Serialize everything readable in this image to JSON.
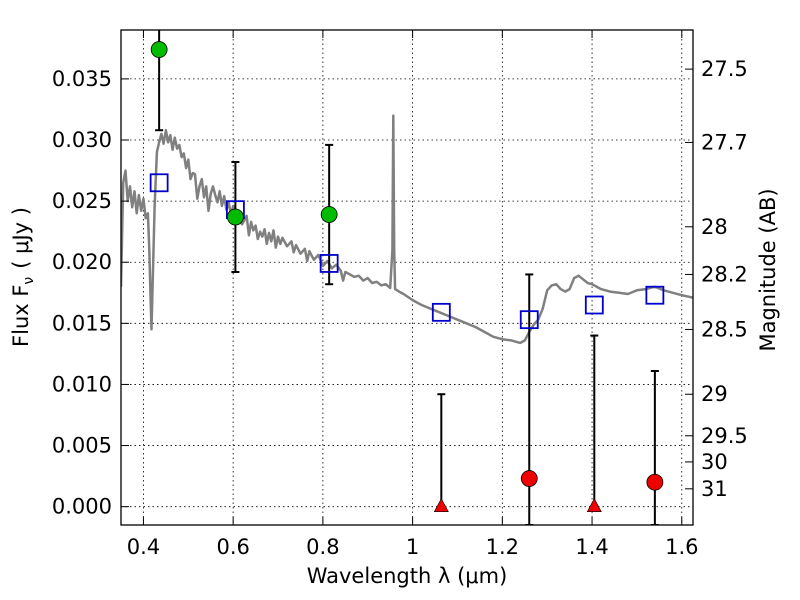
{
  "chart_data": {
    "type": "scatter",
    "xlabel": "Wavelength  λ (μm)",
    "ylabel": "Flux  F",
    "ylabel_sub": "ν",
    "ylabel_unit": "( μJy )",
    "y2label": "Magnitude (AB)",
    "xlim": [
      0.35,
      1.625
    ],
    "ylim": [
      -0.0015,
      0.039
    ],
    "grid": true,
    "x_ticks": [
      0.4,
      0.6,
      0.8,
      1.0,
      1.2,
      1.4,
      1.6
    ],
    "x_tick_labels": [
      "0.4",
      "0.6",
      "0.8",
      "1",
      "1.2",
      "1.4",
      "1.6"
    ],
    "y_ticks": [
      0.0,
      0.005,
      0.01,
      0.015,
      0.02,
      0.025,
      0.03,
      0.035
    ],
    "y_tick_labels": [
      "0.000",
      "0.005",
      "0.010",
      "0.015",
      "0.020",
      "0.025",
      "0.030",
      "0.035"
    ],
    "y2_ticks": [
      {
        "flux": 0.0358,
        "label": "27.5"
      },
      {
        "flux": 0.0298,
        "label": "27.7"
      },
      {
        "flux": 0.0229,
        "label": "28"
      },
      {
        "flux": 0.019,
        "label": "28.2"
      },
      {
        "flux": 0.0145,
        "label": "28.5"
      },
      {
        "flux": 0.0092,
        "label": "29"
      },
      {
        "flux": 0.0058,
        "label": "29.5"
      },
      {
        "flux": 0.00366,
        "label": "30"
      },
      {
        "flux": 0.00146,
        "label": "31"
      }
    ],
    "series": [
      {
        "kind": "model_sed",
        "color": "#808080",
        "points": [
          [
            0.35,
            0.018
          ],
          [
            0.355,
            0.0265
          ],
          [
            0.36,
            0.0275
          ],
          [
            0.365,
            0.025
          ],
          [
            0.37,
            0.0262
          ],
          [
            0.375,
            0.0245
          ],
          [
            0.38,
            0.0258
          ],
          [
            0.385,
            0.024
          ],
          [
            0.39,
            0.0255
          ],
          [
            0.395,
            0.0242
          ],
          [
            0.4,
            0.0252
          ],
          [
            0.405,
            0.0236
          ],
          [
            0.41,
            0.024
          ],
          [
            0.413,
            0.021
          ],
          [
            0.416,
            0.017
          ],
          [
            0.418,
            0.0145
          ],
          [
            0.421,
            0.019
          ],
          [
            0.425,
            0.0245
          ],
          [
            0.43,
            0.029
          ],
          [
            0.435,
            0.0298
          ],
          [
            0.44,
            0.0305
          ],
          [
            0.445,
            0.0297
          ],
          [
            0.45,
            0.0308
          ],
          [
            0.455,
            0.0298
          ],
          [
            0.46,
            0.0304
          ],
          [
            0.465,
            0.0292
          ],
          [
            0.47,
            0.0302
          ],
          [
            0.475,
            0.0293
          ],
          [
            0.48,
            0.0296
          ],
          [
            0.485,
            0.0286
          ],
          [
            0.49,
            0.0289
          ],
          [
            0.495,
            0.0277
          ],
          [
            0.5,
            0.0284
          ],
          [
            0.505,
            0.0268
          ],
          [
            0.51,
            0.0273
          ],
          [
            0.515,
            0.0272
          ],
          [
            0.52,
            0.0252
          ],
          [
            0.525,
            0.0262
          ],
          [
            0.53,
            0.0268
          ],
          [
            0.535,
            0.0253
          ],
          [
            0.54,
            0.0262
          ],
          [
            0.545,
            0.0242
          ],
          [
            0.55,
            0.0256
          ],
          [
            0.555,
            0.0262
          ],
          [
            0.56,
            0.0255
          ],
          [
            0.565,
            0.0249
          ],
          [
            0.57,
            0.0258
          ],
          [
            0.575,
            0.0246
          ],
          [
            0.58,
            0.0254
          ],
          [
            0.585,
            0.0243
          ],
          [
            0.59,
            0.0249
          ],
          [
            0.595,
            0.0239
          ],
          [
            0.6,
            0.0246
          ],
          [
            0.61,
            0.0237
          ],
          [
            0.62,
            0.0231
          ],
          [
            0.63,
            0.0238
          ],
          [
            0.635,
            0.0222
          ],
          [
            0.64,
            0.0233
          ],
          [
            0.645,
            0.0226
          ],
          [
            0.65,
            0.023
          ],
          [
            0.655,
            0.0219
          ],
          [
            0.66,
            0.0225
          ],
          [
            0.665,
            0.0221
          ],
          [
            0.67,
            0.0227
          ],
          [
            0.675,
            0.0215
          ],
          [
            0.68,
            0.0224
          ],
          [
            0.685,
            0.0217
          ],
          [
            0.69,
            0.0226
          ],
          [
            0.695,
            0.0212
          ],
          [
            0.7,
            0.0221
          ],
          [
            0.705,
            0.0215
          ],
          [
            0.71,
            0.022
          ],
          [
            0.72,
            0.0213
          ],
          [
            0.73,
            0.0217
          ],
          [
            0.735,
            0.0208
          ],
          [
            0.74,
            0.0214
          ],
          [
            0.75,
            0.0207
          ],
          [
            0.76,
            0.0211
          ],
          [
            0.765,
            0.0201
          ],
          [
            0.77,
            0.0209
          ],
          [
            0.78,
            0.0202
          ],
          [
            0.79,
            0.0206
          ],
          [
            0.8,
            0.0197
          ],
          [
            0.81,
            0.0201
          ],
          [
            0.82,
            0.0195
          ],
          [
            0.83,
            0.0198
          ],
          [
            0.84,
            0.0193
          ],
          [
            0.845,
            0.0185
          ],
          [
            0.85,
            0.0192
          ],
          [
            0.86,
            0.019
          ],
          [
            0.87,
            0.0188
          ],
          [
            0.88,
            0.0189
          ],
          [
            0.89,
            0.0185
          ],
          [
            0.9,
            0.0187
          ],
          [
            0.91,
            0.0183
          ],
          [
            0.92,
            0.0184
          ],
          [
            0.93,
            0.0181
          ],
          [
            0.94,
            0.0182
          ],
          [
            0.95,
            0.0179
          ],
          [
            0.955,
            0.021
          ],
          [
            0.957,
            0.032
          ],
          [
            0.959,
            0.021
          ],
          [
            0.961,
            0.0178
          ],
          [
            0.97,
            0.0176
          ],
          [
            0.98,
            0.0174
          ],
          [
            1.0,
            0.0169
          ],
          [
            1.02,
            0.0165
          ],
          [
            1.04,
            0.0162
          ],
          [
            1.06,
            0.0159
          ],
          [
            1.08,
            0.0156
          ],
          [
            1.1,
            0.0153
          ],
          [
            1.12,
            0.015
          ],
          [
            1.14,
            0.0147
          ],
          [
            1.16,
            0.0143
          ],
          [
            1.18,
            0.0139
          ],
          [
            1.2,
            0.0137
          ],
          [
            1.22,
            0.0136
          ],
          [
            1.24,
            0.0134
          ],
          [
            1.25,
            0.0136
          ],
          [
            1.26,
            0.0143
          ],
          [
            1.27,
            0.0149
          ],
          [
            1.28,
            0.0153
          ],
          [
            1.29,
            0.0162
          ],
          [
            1.3,
            0.0177
          ],
          [
            1.31,
            0.0181
          ],
          [
            1.32,
            0.0182
          ],
          [
            1.33,
            0.0178
          ],
          [
            1.34,
            0.0176
          ],
          [
            1.35,
            0.0178
          ],
          [
            1.36,
            0.0187
          ],
          [
            1.37,
            0.0189
          ],
          [
            1.38,
            0.0186
          ],
          [
            1.39,
            0.0183
          ],
          [
            1.4,
            0.0182
          ],
          [
            1.42,
            0.0178
          ],
          [
            1.44,
            0.0176
          ],
          [
            1.46,
            0.0175
          ],
          [
            1.48,
            0.0174
          ],
          [
            1.5,
            0.0177
          ],
          [
            1.52,
            0.0178
          ],
          [
            1.54,
            0.018
          ],
          [
            1.56,
            0.0177
          ],
          [
            1.58,
            0.0175
          ],
          [
            1.6,
            0.0173
          ],
          [
            1.625,
            0.0171
          ]
        ]
      },
      {
        "kind": "model_photometry",
        "color": "#0000cc",
        "marker": "open-square",
        "points": [
          [
            0.435,
            0.0265
          ],
          [
            0.605,
            0.0243
          ],
          [
            0.814,
            0.0199
          ],
          [
            1.064,
            0.0159
          ],
          [
            1.26,
            0.0153
          ],
          [
            1.405,
            0.0165
          ],
          [
            1.54,
            0.0173
          ]
        ]
      },
      {
        "kind": "detections",
        "color": "#00bb00",
        "marker": "filled-circle",
        "points": [
          {
            "x": 0.435,
            "y": 0.0374,
            "err_low": 0.0066,
            "err_high": 0.0066
          },
          {
            "x": 0.605,
            "y": 0.0237,
            "err_low": 0.0045,
            "err_high": 0.0045
          },
          {
            "x": 0.814,
            "y": 0.0239,
            "err_low": 0.0057,
            "err_high": 0.0057
          }
        ]
      },
      {
        "kind": "non_detections",
        "color": "#ee0000",
        "points": [
          {
            "x": 1.064,
            "y": 0.0,
            "marker": "triangle",
            "err_low": 0.0,
            "err_high": 0.0092
          },
          {
            "x": 1.26,
            "y": 0.0023,
            "marker": "filled-circle",
            "err_low": 0.0038,
            "err_high": 0.0167
          },
          {
            "x": 1.405,
            "y": 0.0,
            "marker": "triangle",
            "err_low": 0.0,
            "err_high": 0.014
          },
          {
            "x": 1.54,
            "y": 0.002,
            "marker": "filled-circle",
            "err_low": 0.0035,
            "err_high": 0.0091
          }
        ]
      }
    ]
  }
}
